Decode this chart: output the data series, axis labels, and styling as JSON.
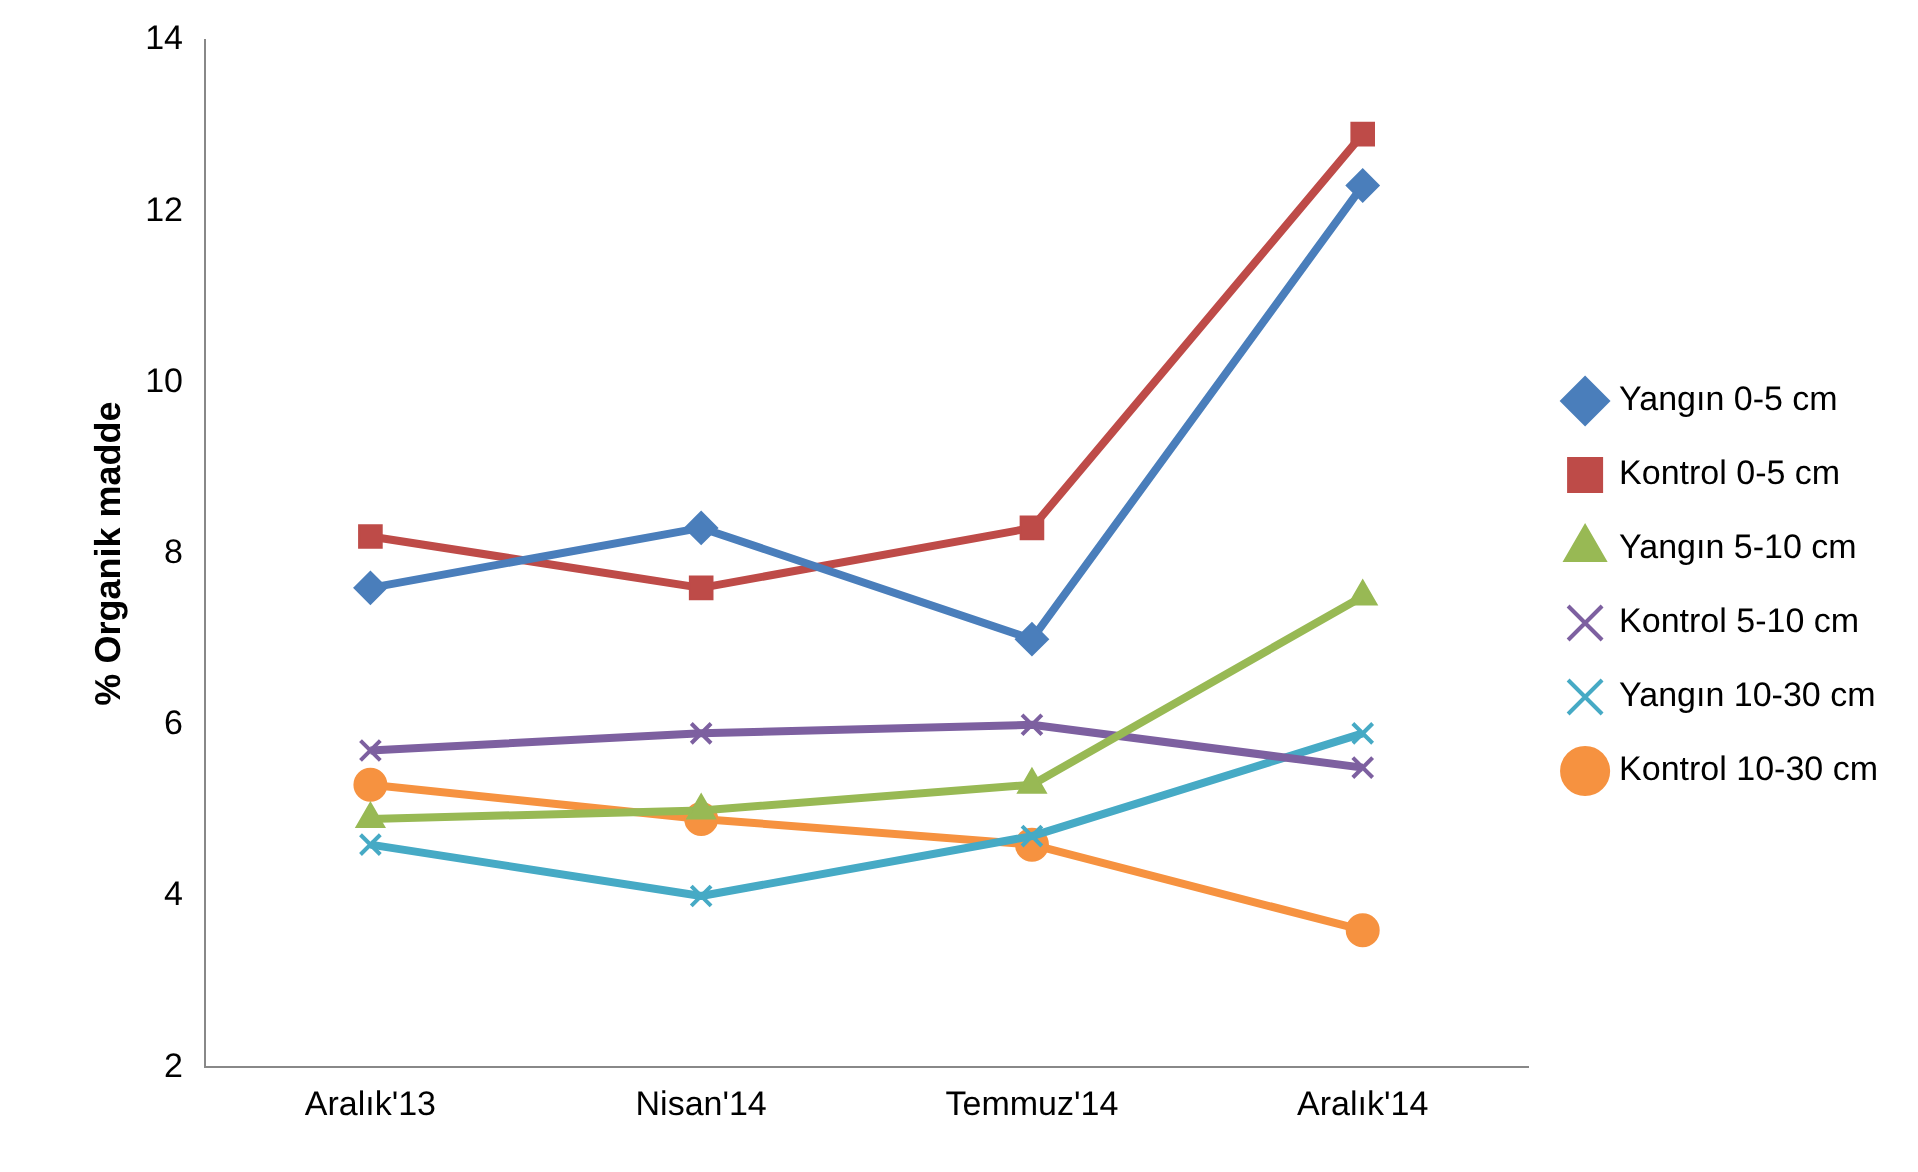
{
  "chart_data": {
    "type": "line",
    "ylabel": "% Organik madde",
    "categories": [
      "Aralık'13",
      "Nisan'14",
      "Temmuz'14",
      "Aralık'14"
    ],
    "ylim": [
      2,
      14
    ],
    "yticks": [
      2,
      4,
      6,
      8,
      10,
      12,
      14
    ],
    "grid": false,
    "legend": "right",
    "line_style": "solid",
    "series": [
      {
        "name": "Yangın 0-5 cm",
        "color": "#4a7ebb",
        "marker": "diamond",
        "values": [
          7.6,
          8.3,
          7.0,
          12.3
        ]
      },
      {
        "name": "Kontrol 0-5 cm",
        "color": "#be4b48",
        "marker": "square",
        "values": [
          8.2,
          7.6,
          8.3,
          12.9
        ]
      },
      {
        "name": "Yangın 5-10 cm",
        "color": "#98b954",
        "marker": "triangle",
        "values": [
          4.9,
          5.0,
          5.3,
          7.5
        ]
      },
      {
        "name": "Kontrol 5-10 cm",
        "color": "#7d60a0",
        "marker": "cross",
        "values": [
          5.7,
          5.9,
          6.0,
          5.5
        ]
      },
      {
        "name": "Yangın 10-30 cm",
        "color": "#46aac5",
        "marker": "cross",
        "values": [
          4.6,
          4.0,
          4.7,
          5.9
        ]
      },
      {
        "name": "Kontrol 10-30 cm",
        "color": "#f69240",
        "marker": "circle",
        "values": [
          5.3,
          4.9,
          4.6,
          3.6
        ]
      }
    ]
  }
}
